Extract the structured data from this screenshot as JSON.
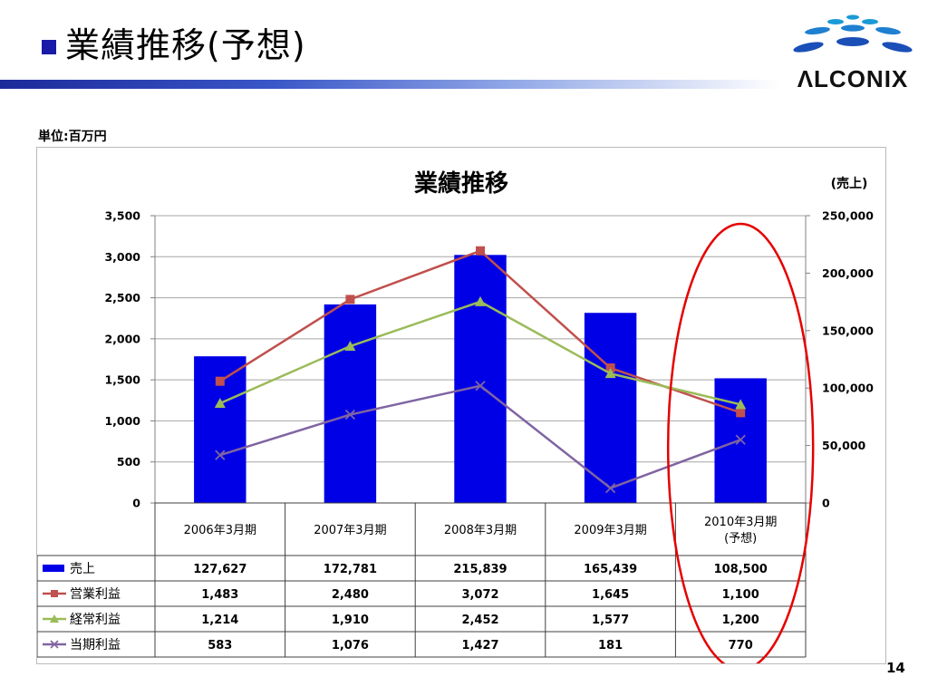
{
  "slide": {
    "title": "業績推移(予想)",
    "unit_label": "単位:百万円",
    "page_number": "14",
    "logo_text": "ΛLCONIX"
  },
  "chart_data": {
    "type": "bar",
    "title": "業績推移",
    "right_axis_label": "(売上)",
    "categories": [
      "2006年3月期",
      "2007年3月期",
      "2008年3月期",
      "2009年3月期",
      "2010年3月期\n(予想)"
    ],
    "left_axis": {
      "min": 0,
      "max": 3500,
      "ticks": [
        0,
        500,
        1000,
        1500,
        2000,
        2500,
        3000,
        3500
      ],
      "tick_labels": [
        "0",
        "500",
        "1,000",
        "1,500",
        "2,000",
        "2,500",
        "3,000",
        "3,500"
      ]
    },
    "right_axis": {
      "min": 0,
      "max": 250000,
      "ticks": [
        0,
        50000,
        100000,
        150000,
        200000,
        250000
      ],
      "tick_labels": [
        "0",
        "50,000",
        "100,000",
        "150,000",
        "200,000",
        "250,000"
      ]
    },
    "grid": true,
    "legend_placement": "data-table",
    "series": [
      {
        "name": "売上",
        "type": "bar",
        "axis": "right",
        "color": "#0000e6",
        "values": [
          127627,
          172781,
          215839,
          165439,
          108500
        ],
        "display": [
          "127,627",
          "172,781",
          "215,839",
          "165,439",
          "108,500"
        ]
      },
      {
        "name": "営業利益",
        "type": "line",
        "axis": "left",
        "color": "#c0504d",
        "marker": "square",
        "values": [
          1483,
          2480,
          3072,
          1645,
          1100
        ],
        "display": [
          "1,483",
          "2,480",
          "3,072",
          "1,645",
          "1,100"
        ]
      },
      {
        "name": "経常利益",
        "type": "line",
        "axis": "left",
        "color": "#9bbb59",
        "marker": "triangle",
        "values": [
          1214,
          1910,
          2452,
          1577,
          1200
        ],
        "display": [
          "1,214",
          "1,910",
          "2,452",
          "1,577",
          "1,200"
        ]
      },
      {
        "name": "当期利益",
        "type": "line",
        "axis": "left",
        "color": "#8064a2",
        "marker": "x",
        "values": [
          583,
          1076,
          1427,
          181,
          770
        ],
        "display": [
          "583",
          "1,076",
          "1,427",
          "181",
          "770"
        ]
      }
    ],
    "annotation": {
      "shape": "ellipse",
      "color": "#e60000",
      "highlights": "2010年3月期\n(予想)"
    }
  }
}
